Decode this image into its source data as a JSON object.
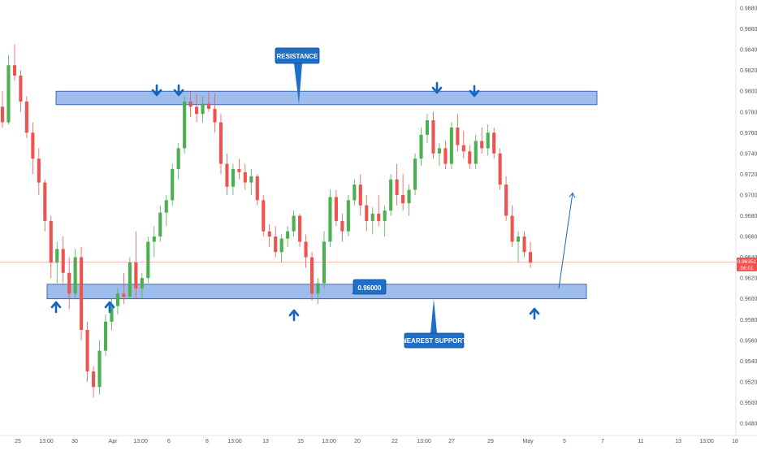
{
  "chart_data": {
    "type": "candlestick",
    "instrument_hint": "",
    "y_axis": {
      "ylim": [
        0.948,
        0.99
      ],
      "ticks": [
        "0.98800",
        "0.98600",
        "0.98400",
        "0.98200",
        "0.98000",
        "0.97800",
        "0.97600",
        "0.97400",
        "0.97200",
        "0.97000",
        "0.96800",
        "0.96600",
        "0.96400",
        "0.96200",
        "0.96000",
        "0.95800",
        "0.95600",
        "0.95400",
        "0.95200",
        "0.95000",
        "0.94800"
      ],
      "tick_values": [
        0.988,
        0.986,
        0.984,
        0.982,
        0.98,
        0.978,
        0.976,
        0.974,
        0.972,
        0.97,
        0.968,
        0.966,
        0.964,
        0.962,
        0.96,
        0.958,
        0.956,
        0.954,
        0.952,
        0.95,
        0.948
      ],
      "current_price_label": "0.96351",
      "countdown_label": "56:01",
      "current_price": 0.96351
    },
    "x_axis": {
      "labels": [
        "25",
        "13:00",
        "30",
        "Apr",
        "13:00",
        "6",
        "8",
        "13:00",
        "13",
        "15",
        "13:00",
        "20",
        "22",
        "13:00",
        "27",
        "29",
        "May",
        "5",
        "7",
        "11",
        "13",
        "13:00",
        "18"
      ]
    },
    "resistance_zone": {
      "low": 0.9787,
      "high": 0.98
    },
    "support_zone": {
      "low": 0.96,
      "high": 0.9614
    },
    "annotations": {
      "resistance_label": "RESISTANCE",
      "support_level_label": "0.96000",
      "nearest_support_label": "NEAREST SUPPORT"
    },
    "projection": {
      "from_price": 0.961,
      "to_price": 0.9702
    },
    "candles": [
      [
        0.9785,
        0.98,
        0.9765,
        0.977
      ],
      [
        0.977,
        0.9835,
        0.9768,
        0.9825
      ],
      [
        0.9825,
        0.9845,
        0.981,
        0.9815
      ],
      [
        0.9815,
        0.982,
        0.978,
        0.979
      ],
      [
        0.979,
        0.9795,
        0.9755,
        0.976
      ],
      [
        0.976,
        0.977,
        0.972,
        0.9735
      ],
      [
        0.9735,
        0.9745,
        0.97,
        0.9712
      ],
      [
        0.9712,
        0.9715,
        0.9665,
        0.9675
      ],
      [
        0.9675,
        0.968,
        0.962,
        0.9635
      ],
      [
        0.9635,
        0.9655,
        0.9615,
        0.9648
      ],
      [
        0.9648,
        0.966,
        0.9615,
        0.9625
      ],
      [
        0.9625,
        0.964,
        0.959,
        0.9605
      ],
      [
        0.9605,
        0.9648,
        0.96,
        0.964
      ],
      [
        0.964,
        0.965,
        0.956,
        0.957
      ],
      [
        0.957,
        0.9578,
        0.952,
        0.953
      ],
      [
        0.953,
        0.9535,
        0.9505,
        0.9515
      ],
      [
        0.9515,
        0.956,
        0.9508,
        0.955
      ],
      [
        0.955,
        0.9585,
        0.9545,
        0.9578
      ],
      [
        0.9578,
        0.96,
        0.957,
        0.9593
      ],
      [
        0.9593,
        0.961,
        0.9585,
        0.9605
      ],
      [
        0.9605,
        0.9625,
        0.9595,
        0.9602
      ],
      [
        0.9602,
        0.964,
        0.96,
        0.9635
      ],
      [
        0.9635,
        0.9665,
        0.96,
        0.961
      ],
      [
        0.961,
        0.9625,
        0.96,
        0.962
      ],
      [
        0.962,
        0.966,
        0.9615,
        0.9655
      ],
      [
        0.9655,
        0.967,
        0.964,
        0.966
      ],
      [
        0.966,
        0.969,
        0.9655,
        0.9683
      ],
      [
        0.9683,
        0.97,
        0.967,
        0.9695
      ],
      [
        0.9695,
        0.973,
        0.969,
        0.9725
      ],
      [
        0.9725,
        0.975,
        0.9715,
        0.9745
      ],
      [
        0.9745,
        0.9795,
        0.974,
        0.979
      ],
      [
        0.979,
        0.98,
        0.9775,
        0.9785
      ],
      [
        0.9785,
        0.9798,
        0.977,
        0.9778
      ],
      [
        0.9778,
        0.9795,
        0.977,
        0.9788
      ],
      [
        0.9788,
        0.98,
        0.978,
        0.9783
      ],
      [
        0.9783,
        0.9798,
        0.976,
        0.977
      ],
      [
        0.977,
        0.9778,
        0.972,
        0.973
      ],
      [
        0.973,
        0.974,
        0.97,
        0.9708
      ],
      [
        0.9708,
        0.973,
        0.97,
        0.9725
      ],
      [
        0.9725,
        0.9735,
        0.9715,
        0.9722
      ],
      [
        0.9722,
        0.973,
        0.9705,
        0.9712
      ],
      [
        0.9712,
        0.9725,
        0.97,
        0.9718
      ],
      [
        0.9718,
        0.972,
        0.969,
        0.9695
      ],
      [
        0.9695,
        0.97,
        0.966,
        0.9665
      ],
      [
        0.9665,
        0.9672,
        0.965,
        0.966
      ],
      [
        0.966,
        0.967,
        0.964,
        0.9645
      ],
      [
        0.9645,
        0.9662,
        0.9635,
        0.9658
      ],
      [
        0.9658,
        0.967,
        0.965,
        0.9665
      ],
      [
        0.9665,
        0.9685,
        0.966,
        0.968
      ],
      [
        0.968,
        0.9682,
        0.965,
        0.9655
      ],
      [
        0.9655,
        0.9662,
        0.963,
        0.964
      ],
      [
        0.964,
        0.9645,
        0.9598,
        0.9605
      ],
      [
        0.9605,
        0.962,
        0.9595,
        0.9615
      ],
      [
        0.9615,
        0.9665,
        0.961,
        0.9655
      ],
      [
        0.9655,
        0.9705,
        0.965,
        0.9698
      ],
      [
        0.9698,
        0.9705,
        0.967,
        0.9675
      ],
      [
        0.9675,
        0.9682,
        0.9655,
        0.9665
      ],
      [
        0.9665,
        0.97,
        0.966,
        0.9695
      ],
      [
        0.9695,
        0.9715,
        0.969,
        0.971
      ],
      [
        0.971,
        0.972,
        0.968,
        0.969
      ],
      [
        0.969,
        0.97,
        0.9665,
        0.9675
      ],
      [
        0.9675,
        0.9688,
        0.9662,
        0.9682
      ],
      [
        0.9682,
        0.97,
        0.967,
        0.9675
      ],
      [
        0.9675,
        0.969,
        0.966,
        0.9685
      ],
      [
        0.9685,
        0.972,
        0.968,
        0.9715
      ],
      [
        0.9715,
        0.973,
        0.969,
        0.97
      ],
      [
        0.97,
        0.972,
        0.9685,
        0.9692
      ],
      [
        0.9692,
        0.971,
        0.968,
        0.9705
      ],
      [
        0.9705,
        0.974,
        0.97,
        0.9735
      ],
      [
        0.9735,
        0.9765,
        0.9728,
        0.9758
      ],
      [
        0.9758,
        0.9778,
        0.975,
        0.9772
      ],
      [
        0.9772,
        0.978,
        0.9735,
        0.974
      ],
      [
        0.974,
        0.975,
        0.9728,
        0.9745
      ],
      [
        0.9745,
        0.9752,
        0.9725,
        0.973
      ],
      [
        0.973,
        0.977,
        0.9725,
        0.9765
      ],
      [
        0.9765,
        0.9778,
        0.9742,
        0.9748
      ],
      [
        0.9748,
        0.9762,
        0.9735,
        0.9742
      ],
      [
        0.9742,
        0.9748,
        0.9725,
        0.973
      ],
      [
        0.973,
        0.9758,
        0.9725,
        0.9752
      ],
      [
        0.9752,
        0.9765,
        0.974,
        0.9745
      ],
      [
        0.9745,
        0.9768,
        0.9738,
        0.976
      ],
      [
        0.976,
        0.9765,
        0.9735,
        0.974
      ],
      [
        0.974,
        0.9745,
        0.9705,
        0.971
      ],
      [
        0.971,
        0.9718,
        0.9675,
        0.968
      ],
      [
        0.968,
        0.969,
        0.965,
        0.9655
      ],
      [
        0.9655,
        0.9665,
        0.9635,
        0.966
      ],
      [
        0.966,
        0.9665,
        0.964,
        0.9645
      ],
      [
        0.9645,
        0.9655,
        0.963,
        0.9635
      ]
    ]
  },
  "colors": {
    "bull": "#4caf50",
    "bear": "#ef5350",
    "zone_fill": "#7da7e6",
    "zone_stroke": "#1f4fa8",
    "arrow_blue": "#1565c0",
    "callout_bg": "#1e6fc5",
    "price_line": "#ef5350",
    "price_tag_bg": "#ef5350",
    "grid": "#f0f3fa",
    "axis_text": "#555555"
  }
}
